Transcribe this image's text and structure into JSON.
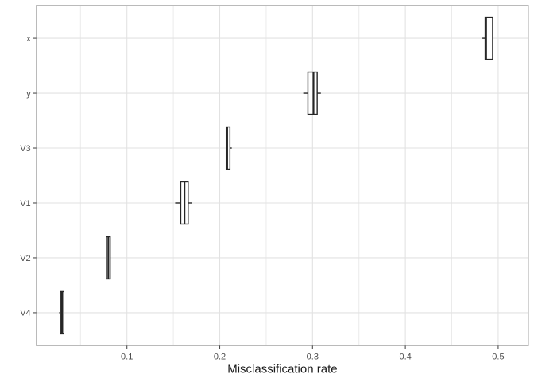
{
  "chart_data": {
    "type": "boxplot",
    "orientation": "horizontal",
    "title": "",
    "xlabel": "Misclassification rate",
    "ylabel": "",
    "categories": [
      "x",
      "y",
      "V3",
      "V1",
      "V2",
      "V4"
    ],
    "x_ticks": [
      "0.1",
      "0.2",
      "0.3",
      "0.4",
      "0.5"
    ],
    "x_tick_values": [
      0.1,
      0.2,
      0.3,
      0.4,
      0.5
    ],
    "x_minor_tick_values": [
      0.05,
      0.15,
      0.25,
      0.35,
      0.45
    ],
    "xlim": [
      0.0024,
      0.5326
    ],
    "grid": true,
    "legend": false,
    "stats": [
      {
        "category": "x",
        "whisker_low": 0.483,
        "q1": 0.486,
        "median": 0.487,
        "q3": 0.494,
        "whisker_high": 0.494
      },
      {
        "category": "y",
        "whisker_low": 0.29,
        "q1": 0.295,
        "median": 0.301,
        "q3": 0.305,
        "whisker_high": 0.309
      },
      {
        "category": "V3",
        "whisker_low": 0.207,
        "q1": 0.207,
        "median": 0.208,
        "q3": 0.211,
        "whisker_high": 0.213
      },
      {
        "category": "V1",
        "whisker_low": 0.152,
        "q1": 0.158,
        "median": 0.162,
        "q3": 0.166,
        "whisker_high": 0.17
      },
      {
        "category": "V2",
        "whisker_low": 0.078,
        "q1": 0.078,
        "median": 0.08,
        "q3": 0.082,
        "whisker_high": 0.082
      },
      {
        "category": "V4",
        "whisker_low": 0.027,
        "q1": 0.0285,
        "median": 0.03,
        "q3": 0.032,
        "whisker_high": 0.032
      }
    ],
    "colors": {
      "background": "#ffffff",
      "panel_fill": "#ffffff",
      "panel_border": "#b3b3b3",
      "grid_major": "#e2e2e2",
      "grid_minor": "#ebebeb",
      "box_stroke": "#262626",
      "box_fill": "#ffffff",
      "tick_mark": "#4d4d4d",
      "tick_label": "#4d4d4d",
      "axis_title": "#1a1a1a"
    }
  }
}
